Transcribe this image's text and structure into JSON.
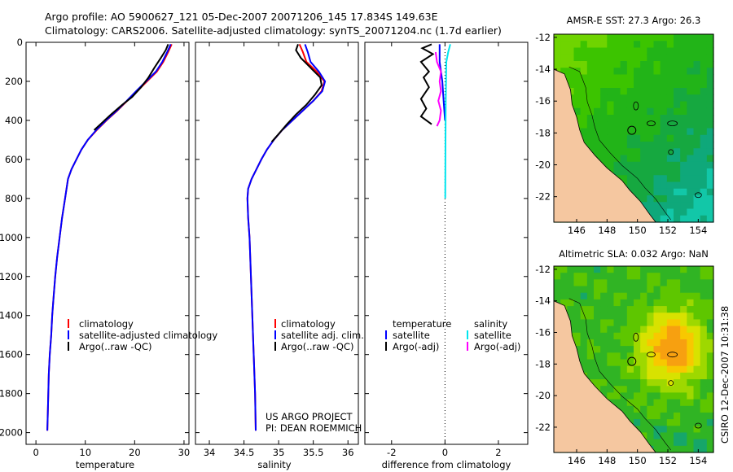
{
  "header": {
    "line1": "Argo profile: AO 5900627_121 05-Dec-2007 20071206_145 17.834S 149.63E",
    "line2": "Climatology: CARS2006. Satellite-adjusted climatology: synTS_20071204.nc (1.7d earlier)"
  },
  "colors": {
    "climatology": "#ff0000",
    "satellite": "#0000ff",
    "argo": "#000000",
    "temp_diff_sat": "#0000ff",
    "sal_diff_sat": "#00e5ee",
    "sal_diff_argo": "#ff00ff",
    "land": "#f5c7a0"
  },
  "chart_data": [
    {
      "type": "line",
      "name": "temperature-profile",
      "xlabel": "temperature",
      "ylabel": "",
      "xlim": [
        -2,
        31
      ],
      "ylim": [
        2060,
        0
      ],
      "xticks": [
        "0",
        "10",
        "20",
        "30"
      ],
      "xtick_values": [
        0,
        10,
        20,
        30
      ],
      "yticks": [
        "0",
        "200",
        "400",
        "600",
        "800",
        "1000",
        "1200",
        "1400",
        "1600",
        "1800",
        "2000"
      ],
      "ytick_values": [
        0,
        200,
        400,
        600,
        800,
        1000,
        1200,
        1400,
        1600,
        1800,
        2000
      ],
      "legend": [
        "climatology",
        "satellite-adjusted climatology",
        "Argo(..raw -QC)"
      ],
      "series": [
        {
          "name": "climatology",
          "color_key": "climatology",
          "points": [
            [
              27.5,
              10
            ],
            [
              26.8,
              50
            ],
            [
              25.8,
              100
            ],
            [
              24.5,
              150
            ],
            [
              22.5,
              200
            ],
            [
              20.5,
              250
            ],
            [
              18.5,
              300
            ],
            [
              16.5,
              350
            ],
            [
              14.3,
              400
            ],
            [
              12.3,
              450
            ],
            [
              10.5,
              500
            ],
            [
              9.2,
              550
            ],
            [
              8.2,
              600
            ],
            [
              7.2,
              650
            ],
            [
              6.5,
              700
            ],
            [
              5.9,
              800
            ],
            [
              5.3,
              900
            ],
            [
              4.8,
              1000
            ],
            [
              4.3,
              1100
            ],
            [
              3.9,
              1200
            ],
            [
              3.6,
              1300
            ],
            [
              3.3,
              1400
            ],
            [
              3.1,
              1500
            ],
            [
              2.8,
              1600
            ],
            [
              2.6,
              1700
            ],
            [
              2.5,
              1800
            ],
            [
              2.4,
              1900
            ],
            [
              2.3,
              1990
            ]
          ]
        },
        {
          "name": "satellite-adjusted climatology",
          "color_key": "satellite",
          "points": [
            [
              27.3,
              10
            ],
            [
              26.6,
              50
            ],
            [
              25.6,
              100
            ],
            [
              24.3,
              150
            ],
            [
              22.3,
              200
            ],
            [
              20.3,
              250
            ],
            [
              18.4,
              300
            ],
            [
              16.4,
              350
            ],
            [
              14.2,
              400
            ],
            [
              12.2,
              450
            ],
            [
              10.5,
              500
            ],
            [
              9.2,
              550
            ],
            [
              8.2,
              600
            ],
            [
              7.2,
              650
            ],
            [
              6.5,
              700
            ],
            [
              5.9,
              800
            ],
            [
              5.3,
              900
            ],
            [
              4.8,
              1000
            ],
            [
              4.3,
              1100
            ],
            [
              3.9,
              1200
            ],
            [
              3.6,
              1300
            ],
            [
              3.3,
              1400
            ],
            [
              3.1,
              1500
            ],
            [
              2.8,
              1600
            ],
            [
              2.6,
              1700
            ],
            [
              2.5,
              1800
            ],
            [
              2.4,
              1900
            ],
            [
              2.3,
              1990
            ]
          ]
        },
        {
          "name": "Argo(..raw -QC)",
          "color_key": "argo",
          "points": [
            [
              26.8,
              10
            ],
            [
              26.3,
              40
            ],
            [
              25.3,
              80
            ],
            [
              24.0,
              130
            ],
            [
              22.8,
              180
            ],
            [
              21.3,
              230
            ],
            [
              19.5,
              280
            ],
            [
              17.5,
              320
            ],
            [
              15.2,
              370
            ],
            [
              13.5,
              410
            ],
            [
              11.8,
              450
            ]
          ]
        }
      ]
    },
    {
      "type": "line",
      "name": "salinity-profile",
      "xlabel": "salinity",
      "ylabel": "",
      "xlim": [
        33.8,
        36.15
      ],
      "ylim": [
        2060,
        0
      ],
      "xticks": [
        "34",
        "34.5",
        "35",
        "35.5",
        "36"
      ],
      "xtick_values": [
        34,
        34.5,
        35,
        35.5,
        36
      ],
      "legend": [
        "climatology",
        "satellite adj. clim.",
        "Argo(..raw -QC)"
      ],
      "annotation": [
        "US ARGO PROJECT",
        "PI: DEAN ROEMMICH"
      ],
      "series": [
        {
          "name": "climatology",
          "color_key": "climatology",
          "points": [
            [
              35.3,
              10
            ],
            [
              35.35,
              50
            ],
            [
              35.4,
              100
            ],
            [
              35.55,
              150
            ],
            [
              35.66,
              200
            ],
            [
              35.62,
              250
            ],
            [
              35.5,
              300
            ],
            [
              35.35,
              350
            ],
            [
              35.2,
              400
            ],
            [
              35.05,
              450
            ],
            [
              34.93,
              500
            ],
            [
              34.83,
              550
            ],
            [
              34.75,
              600
            ],
            [
              34.68,
              650
            ],
            [
              34.61,
              700
            ],
            [
              34.56,
              750
            ],
            [
              34.55,
              800
            ],
            [
              34.56,
              900
            ],
            [
              34.58,
              1000
            ],
            [
              34.6,
              1200
            ],
            [
              34.62,
              1400
            ],
            [
              34.64,
              1600
            ],
            [
              34.66,
              1800
            ],
            [
              34.67,
              1990
            ]
          ]
        },
        {
          "name": "satellite adj. clim.",
          "color_key": "satellite",
          "points": [
            [
              35.38,
              10
            ],
            [
              35.42,
              50
            ],
            [
              35.46,
              100
            ],
            [
              35.58,
              150
            ],
            [
              35.67,
              200
            ],
            [
              35.63,
              250
            ],
            [
              35.5,
              300
            ],
            [
              35.35,
              350
            ],
            [
              35.2,
              400
            ],
            [
              35.05,
              450
            ],
            [
              34.93,
              500
            ],
            [
              34.83,
              550
            ],
            [
              34.75,
              600
            ],
            [
              34.68,
              650
            ],
            [
              34.61,
              700
            ],
            [
              34.56,
              750
            ],
            [
              34.55,
              800
            ],
            [
              34.56,
              900
            ],
            [
              34.58,
              1000
            ],
            [
              34.6,
              1200
            ],
            [
              34.62,
              1400
            ],
            [
              34.64,
              1600
            ],
            [
              34.66,
              1800
            ],
            [
              34.67,
              1990
            ]
          ]
        },
        {
          "name": "Argo(..raw -QC)",
          "color_key": "argo",
          "points": [
            [
              35.28,
              10
            ],
            [
              35.25,
              40
            ],
            [
              35.32,
              80
            ],
            [
              35.46,
              130
            ],
            [
              35.6,
              180
            ],
            [
              35.62,
              220
            ],
            [
              35.52,
              270
            ],
            [
              35.4,
              320
            ],
            [
              35.25,
              370
            ],
            [
              35.12,
              420
            ],
            [
              35.0,
              470
            ],
            [
              34.9,
              510
            ]
          ]
        }
      ]
    },
    {
      "type": "line",
      "name": "difference-from-climatology",
      "xlabel": "difference from climatology",
      "ylabel": "",
      "xlim": [
        -3,
        3.1
      ],
      "ylim": [
        2060,
        0
      ],
      "xticks": [
        "-2",
        "0",
        "2"
      ],
      "xtick_values": [
        -2,
        0,
        2
      ],
      "legend_temperature": {
        "title": "temperature",
        "items": [
          "satellite",
          "Argo(-adj)"
        ]
      },
      "legend_salinity": {
        "title": "salinity",
        "items": [
          "satellite",
          "Argo(-adj)"
        ]
      },
      "series": [
        {
          "name": "temperature satellite",
          "color_key": "temp_diff_sat",
          "points": [
            [
              -0.2,
              10
            ],
            [
              -0.2,
              100
            ],
            [
              -0.1,
              200
            ],
            [
              -0.05,
              300
            ],
            [
              0,
              400
            ]
          ]
        },
        {
          "name": "temperature Argo(-adj)",
          "color_key": "argo",
          "points": [
            [
              -0.5,
              10
            ],
            [
              -0.85,
              30
            ],
            [
              -0.45,
              60
            ],
            [
              -0.9,
              100
            ],
            [
              -0.6,
              150
            ],
            [
              -0.8,
              180
            ],
            [
              -0.6,
              230
            ],
            [
              -0.9,
              290
            ],
            [
              -0.7,
              340
            ],
            [
              -0.9,
              380
            ],
            [
              -0.5,
              420
            ]
          ]
        },
        {
          "name": "salinity satellite",
          "color_key": "sal_diff_sat",
          "points": [
            [
              0.2,
              10
            ],
            [
              0.12,
              50
            ],
            [
              0.05,
              100
            ],
            [
              0.04,
              200
            ],
            [
              0.03,
              300
            ],
            [
              0.02,
              500
            ],
            [
              0.01,
              800
            ]
          ]
        },
        {
          "name": "salinity Argo(-adj)",
          "color_key": "sal_diff_argo",
          "points": [
            [
              -0.35,
              50
            ],
            [
              -0.3,
              100
            ],
            [
              -0.15,
              150
            ],
            [
              -0.2,
              200
            ],
            [
              -0.15,
              250
            ],
            [
              -0.25,
              300
            ],
            [
              -0.15,
              350
            ],
            [
              -0.2,
              400
            ],
            [
              -0.3,
              430
            ]
          ]
        }
      ]
    },
    {
      "type": "heatmap",
      "name": "sst-map",
      "title": "AMSR-E SST: 27.3 Argo: 26.3",
      "xlim": [
        144.5,
        155
      ],
      "ylim": [
        -23.6,
        -11.8
      ],
      "xticks": [
        "146",
        "148",
        "150",
        "152",
        "154"
      ],
      "xtick_values": [
        146,
        148,
        150,
        152,
        154
      ],
      "yticks": [
        "-12",
        "-14",
        "-16",
        "-18",
        "-20",
        "-22"
      ],
      "ytick_values": [
        -12,
        -14,
        -16,
        -18,
        -20,
        -22
      ],
      "argo_location": [
        149.63,
        -17.834
      ],
      "coast": [
        [
          144.5,
          -14.0
        ],
        [
          145.2,
          -14.3
        ],
        [
          145.6,
          -15.3
        ],
        [
          145.7,
          -16.2
        ],
        [
          146.0,
          -17.0
        ],
        [
          146.2,
          -17.8
        ],
        [
          146.5,
          -18.6
        ],
        [
          147.2,
          -19.4
        ],
        [
          148.0,
          -20.2
        ],
        [
          149.0,
          -21.0
        ],
        [
          149.5,
          -21.6
        ],
        [
          150.2,
          -22.3
        ],
        [
          150.8,
          -23.1
        ],
        [
          151.2,
          -23.6
        ]
      ]
    },
    {
      "type": "heatmap",
      "name": "sla-map",
      "title": "Altimetric SLA: 0.032 Argo: NaN",
      "xlim": [
        144.5,
        155
      ],
      "ylim": [
        -23.6,
        -11.8
      ],
      "xticks": [
        "146",
        "148",
        "150",
        "152",
        "154"
      ],
      "xtick_values": [
        146,
        148,
        150,
        152,
        154
      ],
      "yticks": [
        "-12",
        "-14",
        "-16",
        "-18",
        "-20",
        "-22"
      ],
      "ytick_values": [
        -12,
        -14,
        -16,
        -18,
        -20,
        -22
      ],
      "argo_location": [
        149.63,
        -17.834
      ],
      "coast": [
        [
          144.5,
          -14.0
        ],
        [
          145.2,
          -14.3
        ],
        [
          145.6,
          -15.3
        ],
        [
          145.7,
          -16.2
        ],
        [
          146.0,
          -17.0
        ],
        [
          146.2,
          -17.8
        ],
        [
          146.5,
          -18.6
        ],
        [
          147.2,
          -19.4
        ],
        [
          148.0,
          -20.2
        ],
        [
          149.0,
          -21.0
        ],
        [
          149.5,
          -21.6
        ],
        [
          150.2,
          -22.3
        ],
        [
          150.8,
          -23.1
        ],
        [
          151.2,
          -23.6
        ]
      ]
    }
  ],
  "footer_stamp": "CSIRO 12-Dec-2007 10:31:38"
}
